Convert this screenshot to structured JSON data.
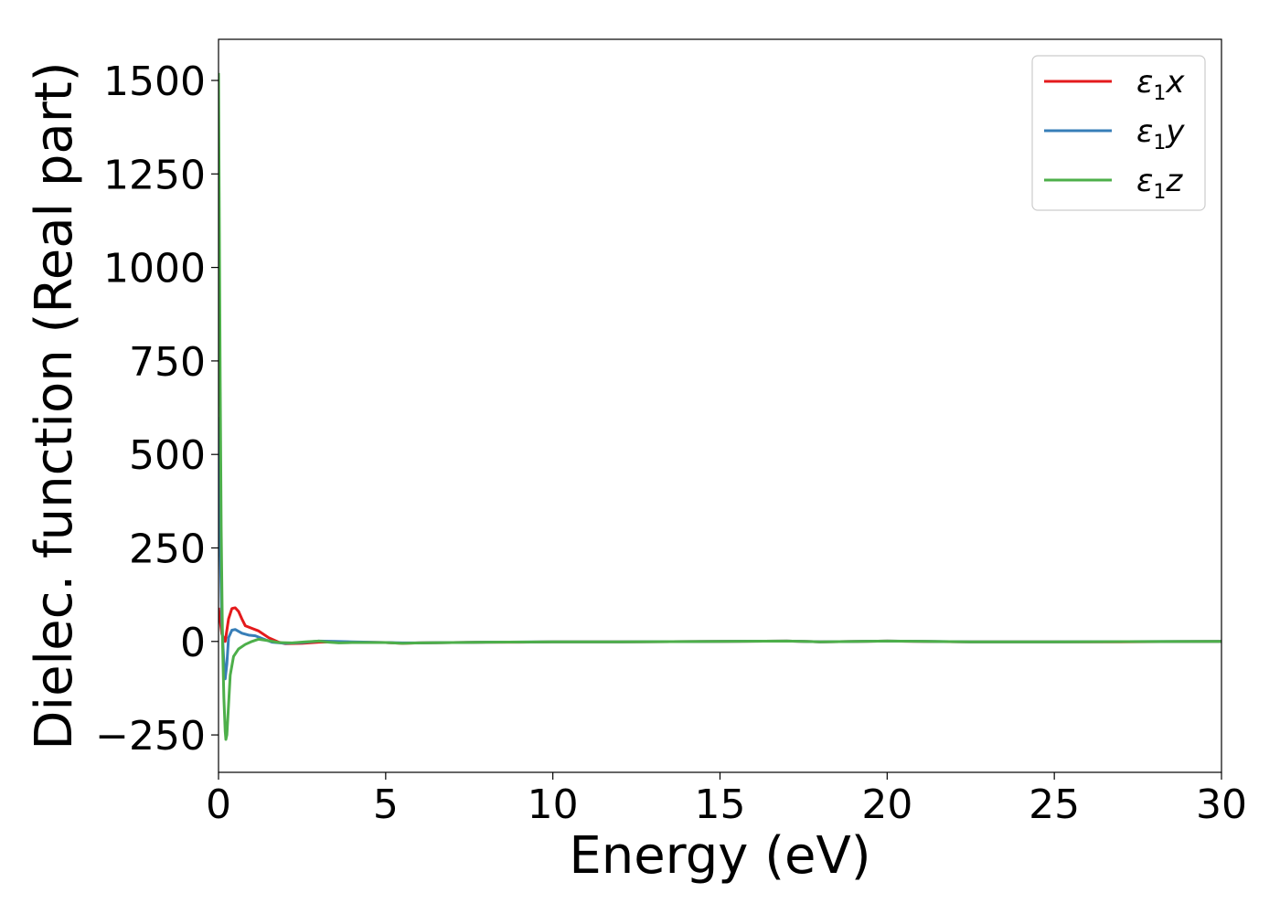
{
  "chart_data": {
    "type": "line",
    "xlabel": "Energy (eV)",
    "ylabel": "Dielec. function (Real part)",
    "xlim": [
      0,
      30
    ],
    "ylim": [
      -350,
      1610
    ],
    "xticks": [
      0,
      5,
      10,
      15,
      20,
      25,
      30
    ],
    "yticks": [
      -250,
      0,
      250,
      500,
      750,
      1000,
      1250,
      1500
    ],
    "grid": false,
    "legend_position": "top-right",
    "series": [
      {
        "name": "ε1x",
        "label_main": "ε",
        "label_sub": "1",
        "label_var": "x",
        "color": "#e41a1c",
        "points": [
          [
            0,
            90
          ],
          [
            0.1,
            20
          ],
          [
            0.2,
            0
          ],
          [
            0.3,
            60
          ],
          [
            0.4,
            88
          ],
          [
            0.5,
            90
          ],
          [
            0.6,
            80
          ],
          [
            0.7,
            60
          ],
          [
            0.8,
            42
          ],
          [
            1.0,
            35
          ],
          [
            1.2,
            28
          ],
          [
            1.5,
            10
          ],
          [
            1.8,
            -2
          ],
          [
            2.0,
            -6
          ],
          [
            2.5,
            -5
          ],
          [
            3.0,
            -2
          ],
          [
            3.5,
            -1
          ],
          [
            4.0,
            -2
          ],
          [
            5.0,
            -3
          ],
          [
            5.5,
            -5
          ],
          [
            6.0,
            -4
          ],
          [
            7.0,
            -3
          ],
          [
            8.0,
            -2
          ],
          [
            9.0,
            -2
          ],
          [
            10.0,
            -1
          ],
          [
            12.0,
            -1
          ],
          [
            15.0,
            0
          ],
          [
            17.0,
            1
          ],
          [
            17.5,
            0
          ],
          [
            18.0,
            -1
          ],
          [
            20.0,
            1
          ],
          [
            21.0,
            0
          ],
          [
            22.5,
            -1
          ],
          [
            25.0,
            -1
          ],
          [
            27.0,
            -1
          ],
          [
            30.0,
            0
          ]
        ]
      },
      {
        "name": "ε1y",
        "label_main": "ε",
        "label_sub": "1",
        "label_var": "y",
        "color": "#377eb8",
        "points": [
          [
            0,
            600
          ],
          [
            0.05,
            250
          ],
          [
            0.1,
            50
          ],
          [
            0.15,
            -40
          ],
          [
            0.2,
            -100
          ],
          [
            0.25,
            -60
          ],
          [
            0.3,
            10
          ],
          [
            0.4,
            30
          ],
          [
            0.5,
            32
          ],
          [
            0.7,
            22
          ],
          [
            0.9,
            17
          ],
          [
            1.1,
            15
          ],
          [
            1.3,
            8
          ],
          [
            1.6,
            -2
          ],
          [
            2.0,
            -5
          ],
          [
            2.5,
            -3
          ],
          [
            3.0,
            1
          ],
          [
            3.5,
            0
          ],
          [
            4.0,
            -1
          ],
          [
            5.0,
            -3
          ],
          [
            5.5,
            -4
          ],
          [
            6.0,
            -4
          ],
          [
            7.0,
            -3
          ],
          [
            8.0,
            -2
          ],
          [
            10.0,
            -1
          ],
          [
            12.0,
            -1
          ],
          [
            15.0,
            0
          ],
          [
            17.0,
            1
          ],
          [
            17.5,
            0
          ],
          [
            18.0,
            -1
          ],
          [
            20.0,
            1
          ],
          [
            22.5,
            -1
          ],
          [
            25.0,
            -1
          ],
          [
            30.0,
            0
          ]
        ]
      },
      {
        "name": "ε1z",
        "label_main": "ε",
        "label_sub": "1",
        "label_var": "z",
        "color": "#4daf4a",
        "points": [
          [
            0,
            1520
          ],
          [
            0.02,
            1200
          ],
          [
            0.05,
            700
          ],
          [
            0.08,
            300
          ],
          [
            0.12,
            0
          ],
          [
            0.16,
            -150
          ],
          [
            0.2,
            -240
          ],
          [
            0.22,
            -262
          ],
          [
            0.25,
            -250
          ],
          [
            0.3,
            -170
          ],
          [
            0.35,
            -90
          ],
          [
            0.45,
            -40
          ],
          [
            0.6,
            -20
          ],
          [
            0.8,
            -8
          ],
          [
            1.0,
            0
          ],
          [
            1.2,
            6
          ],
          [
            1.5,
            2
          ],
          [
            1.8,
            -3
          ],
          [
            2.2,
            -4
          ],
          [
            2.6,
            -1
          ],
          [
            3.0,
            1
          ],
          [
            3.3,
            -2
          ],
          [
            3.6,
            -4
          ],
          [
            4.0,
            -3
          ],
          [
            5.0,
            -3
          ],
          [
            5.5,
            -5
          ],
          [
            6.0,
            -4
          ],
          [
            7.0,
            -3
          ],
          [
            8.0,
            -2
          ],
          [
            10.0,
            -1
          ],
          [
            12.0,
            -1
          ],
          [
            15.0,
            0
          ],
          [
            17.0,
            1
          ],
          [
            17.5,
            0
          ],
          [
            18.0,
            -1
          ],
          [
            20.0,
            1
          ],
          [
            22.5,
            -1
          ],
          [
            25.0,
            -1
          ],
          [
            30.0,
            0
          ]
        ]
      }
    ]
  }
}
